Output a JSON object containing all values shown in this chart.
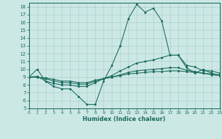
{
  "xlabel": "Humidex (Indice chaleur)",
  "background_color": "#cce8e5",
  "line_color": "#1a6b5e",
  "grid_color": "#aacfcc",
  "xlim": [
    0,
    23
  ],
  "ylim": [
    5,
    18.5
  ],
  "xticks": [
    0,
    1,
    2,
    3,
    4,
    5,
    6,
    7,
    8,
    9,
    10,
    11,
    12,
    13,
    14,
    15,
    16,
    17,
    18,
    19,
    20,
    21,
    22,
    23
  ],
  "yticks": [
    5,
    6,
    7,
    8,
    9,
    10,
    11,
    12,
    13,
    14,
    15,
    16,
    17,
    18
  ],
  "lines": [
    {
      "x": [
        0,
        1,
        2,
        3,
        4,
        5,
        6,
        7,
        8,
        9,
        10,
        11,
        12,
        13,
        14,
        15,
        16,
        17,
        18,
        19,
        20,
        21,
        22,
        23
      ],
      "y": [
        9,
        10,
        8.5,
        7.8,
        7.5,
        7.5,
        6.5,
        5.5,
        5.5,
        8.5,
        10.5,
        13,
        16.5,
        18.3,
        17.3,
        17.8,
        16.2,
        11.8,
        11.8,
        10.2,
        9.5,
        10,
        9.5,
        9.2
      ]
    },
    {
      "x": [
        0,
        1,
        2,
        3,
        4,
        5,
        6,
        7,
        8,
        9,
        10,
        11,
        12,
        13,
        14,
        15,
        16,
        17,
        18,
        19,
        20,
        21,
        22,
        23
      ],
      "y": [
        9,
        9.1,
        8.5,
        8.2,
        8,
        8,
        7.8,
        7.8,
        8.3,
        8.8,
        9.2,
        9.8,
        10.3,
        10.8,
        11.0,
        11.2,
        11.5,
        11.8,
        11.8,
        10.5,
        10.3,
        9.8,
        9.8,
        9.5
      ]
    },
    {
      "x": [
        0,
        1,
        2,
        3,
        4,
        5,
        6,
        7,
        8,
        9,
        10,
        11,
        12,
        13,
        14,
        15,
        16,
        17,
        18,
        19,
        20,
        21,
        22,
        23
      ],
      "y": [
        9,
        9,
        8.8,
        8.5,
        8.3,
        8.3,
        8.1,
        8.1,
        8.5,
        8.8,
        9.0,
        9.3,
        9.6,
        9.8,
        9.9,
        10.0,
        10.1,
        10.2,
        10.2,
        9.9,
        9.7,
        9.5,
        9.3,
        9.2
      ]
    },
    {
      "x": [
        0,
        1,
        2,
        3,
        4,
        5,
        6,
        7,
        8,
        9,
        10,
        11,
        12,
        13,
        14,
        15,
        16,
        17,
        18,
        19,
        20,
        21,
        22,
        23
      ],
      "y": [
        9,
        9,
        8.9,
        8.7,
        8.5,
        8.5,
        8.3,
        8.3,
        8.6,
        8.8,
        9.0,
        9.2,
        9.4,
        9.5,
        9.6,
        9.7,
        9.7,
        9.8,
        9.8,
        9.7,
        9.6,
        9.5,
        9.4,
        9.3
      ]
    }
  ]
}
